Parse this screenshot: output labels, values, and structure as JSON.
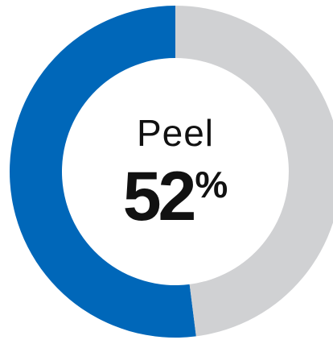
{
  "chart_data": {
    "type": "pie",
    "categories": [
      "Peel",
      ""
    ],
    "values": [
      52,
      48
    ],
    "colors": [
      "#0067B9",
      "#D0D1D3"
    ],
    "center_label": {
      "category": "Peel",
      "value": "52",
      "unit": "%"
    }
  }
}
